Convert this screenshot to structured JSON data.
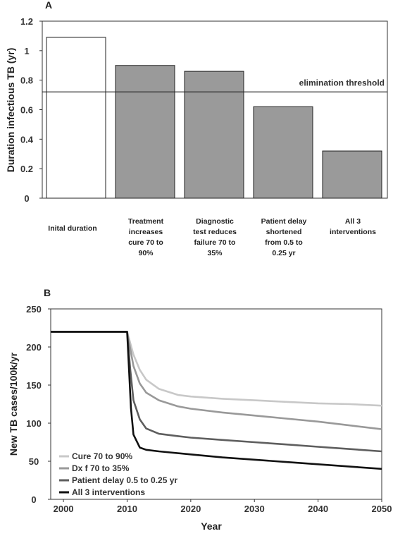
{
  "chart_data": [
    {
      "panel": "A",
      "type": "bar",
      "ylabel": "Duration infectious TB (yr)",
      "ylim": [
        0,
        1.2
      ],
      "yticks": [
        0,
        0.2,
        0.4,
        0.6,
        0.8,
        1,
        1.2
      ],
      "categories": [
        [
          "Inital duration"
        ],
        [
          "Treatment",
          "increases",
          "cure 70 to",
          "90%"
        ],
        [
          "Diagnostic",
          "test reduces",
          "failure 70 to",
          "35%"
        ],
        [
          "Patient delay",
          "shortened",
          "from 0.5 to",
          "0.25 yr"
        ],
        [
          "All 3",
          "interventions"
        ]
      ],
      "values": [
        1.09,
        0.9,
        0.86,
        0.62,
        0.32
      ],
      "bar_colors": [
        "#ffffff",
        "#9a9a9a",
        "#9a9a9a",
        "#9a9a9a",
        "#9a9a9a"
      ],
      "threshold": {
        "value": 0.72,
        "label": "elimination threshold"
      }
    },
    {
      "panel": "B",
      "type": "line",
      "xlabel": "Year",
      "ylabel": "New TB cases/100k/yr",
      "xlim": [
        1998,
        2050
      ],
      "ylim": [
        0,
        250
      ],
      "xticks": [
        2000,
        2010,
        2020,
        2030,
        2040,
        2050
      ],
      "yticks": [
        0,
        50,
        100,
        150,
        200,
        250
      ],
      "series": [
        {
          "name": "Cure 70 to 90%",
          "color": "#c8c8c8",
          "x": [
            1998,
            2010,
            2011,
            2012,
            2013,
            2015,
            2018,
            2020,
            2025,
            2030,
            2035,
            2040,
            2045,
            2050
          ],
          "y": [
            220,
            220,
            190,
            170,
            157,
            145,
            137,
            135,
            132,
            130,
            128,
            126,
            125,
            123
          ]
        },
        {
          "name": "Dx f 70 to 35%",
          "color": "#999999",
          "x": [
            1998,
            2010,
            2011,
            2012,
            2013,
            2015,
            2018,
            2020,
            2025,
            2030,
            2035,
            2040,
            2045,
            2050
          ],
          "y": [
            220,
            220,
            175,
            152,
            140,
            130,
            122,
            119,
            114,
            110,
            106,
            102,
            97,
            92
          ]
        },
        {
          "name": "Patient delay 0.5 to 0.25 yr",
          "color": "#5e5e5e",
          "x": [
            1998,
            2010,
            2010.5,
            2011,
            2012,
            2013,
            2015,
            2018,
            2020,
            2025,
            2030,
            2035,
            2040,
            2045,
            2050
          ],
          "y": [
            220,
            220,
            170,
            130,
            105,
            93,
            86,
            83,
            81,
            78,
            75,
            72,
            69,
            66,
            63
          ]
        },
        {
          "name": "All 3 interventions",
          "color": "#111111",
          "x": [
            1998,
            2010,
            2010.3,
            2010.6,
            2011,
            2012,
            2013,
            2015,
            2020,
            2025,
            2030,
            2035,
            2040,
            2045,
            2050
          ],
          "y": [
            220,
            220,
            170,
            120,
            85,
            68,
            65,
            63,
            59,
            55,
            52,
            49,
            46,
            43,
            40
          ]
        }
      ]
    }
  ]
}
